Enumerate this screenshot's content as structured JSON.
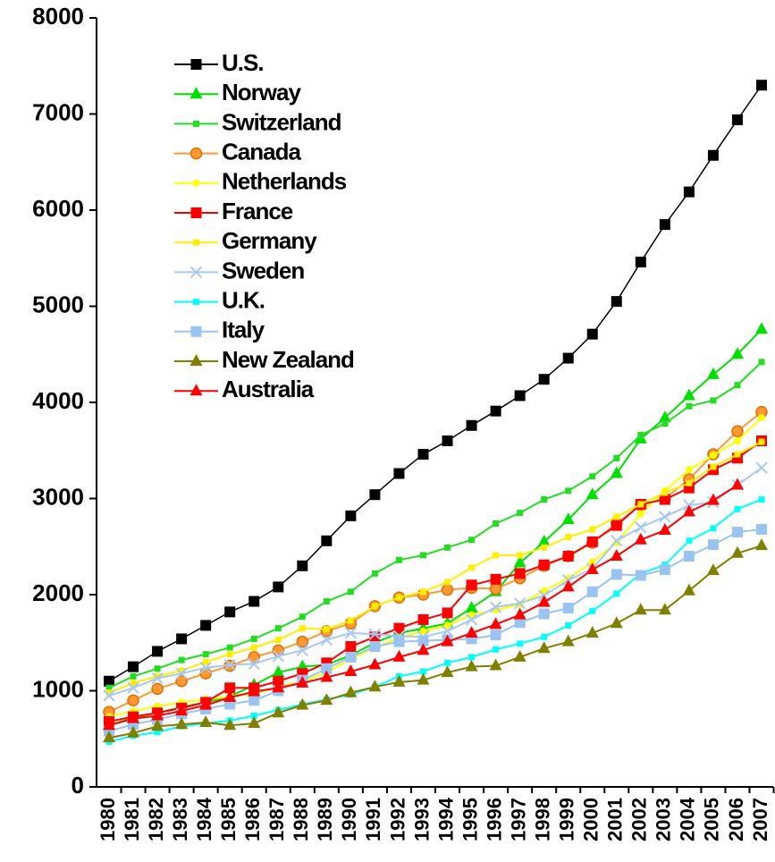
{
  "chart_data": {
    "type": "line",
    "categories": [
      "1980",
      "1981",
      "1982",
      "1983",
      "1984",
      "1985",
      "1986",
      "1987",
      "1988",
      "1989",
      "1990",
      "1991",
      "1992",
      "1993",
      "1994",
      "1995",
      "1996",
      "1997",
      "1998",
      "1999",
      "2000",
      "2001",
      "2002",
      "2003",
      "2004",
      "2005",
      "2006",
      "2007"
    ],
    "ylim": [
      0,
      8000
    ],
    "yticks": [
      0,
      1000,
      2000,
      3000,
      4000,
      5000,
      6000,
      7000,
      8000
    ],
    "grid": false,
    "series": [
      {
        "name": "U.S.",
        "color": "#000000",
        "marker": "square",
        "values": [
          1100,
          1250,
          1410,
          1540,
          1680,
          1820,
          1930,
          2080,
          2300,
          2560,
          2820,
          3040,
          3260,
          3460,
          3600,
          3760,
          3910,
          4070,
          4240,
          4460,
          4710,
          5050,
          5460,
          5850,
          6190,
          6570,
          6940,
          7300
        ]
      },
      {
        "name": "Norway",
        "color": "#00e000",
        "marker": "triangle",
        "values": [
          640,
          720,
          770,
          830,
          880,
          940,
          1060,
          1190,
          1250,
          1270,
          1370,
          1500,
          1600,
          1650,
          1700,
          1860,
          2030,
          2330,
          2550,
          2780,
          3040,
          3260,
          3620,
          3840,
          4070,
          4290,
          4500,
          4760
        ]
      },
      {
        "name": "Switzerland",
        "color": "#22dd22",
        "marker": "small-square",
        "values": [
          1030,
          1150,
          1230,
          1320,
          1380,
          1450,
          1540,
          1650,
          1770,
          1930,
          2030,
          2220,
          2360,
          2410,
          2490,
          2570,
          2740,
          2850,
          2990,
          3080,
          3230,
          3420,
          3660,
          3780,
          3960,
          4020,
          4180,
          4420
        ]
      },
      {
        "name": "Canada",
        "color": "#ff9933",
        "marker": "circle",
        "values": [
          780,
          900,
          1020,
          1100,
          1180,
          1260,
          1350,
          1420,
          1510,
          1620,
          1700,
          1880,
          1970,
          2000,
          2050,
          2070,
          2060,
          2170,
          2300,
          2400,
          2540,
          2740,
          2930,
          3000,
          3200,
          3460,
          3700,
          3900
        ]
      },
      {
        "name": "Netherlands",
        "color": "#ffff00",
        "marker": "small-circle",
        "values": [
          730,
          790,
          840,
          880,
          910,
          940,
          970,
          1040,
          1100,
          1190,
          1330,
          1450,
          1550,
          1620,
          1680,
          1790,
          1840,
          1900,
          2040,
          2170,
          2340,
          2540,
          2840,
          3080,
          3300,
          3450,
          3600,
          3840
        ]
      },
      {
        "name": "France",
        "color": "#ff0000",
        "marker": "square",
        "values": [
          680,
          730,
          770,
          820,
          880,
          1030,
          1030,
          1100,
          1180,
          1290,
          1460,
          1560,
          1650,
          1740,
          1810,
          2100,
          2160,
          2220,
          2310,
          2400,
          2550,
          2720,
          2940,
          2990,
          3110,
          3300,
          3420,
          3600
        ]
      },
      {
        "name": "Germany",
        "color": "#ffee00",
        "marker": "small-square",
        "values": [
          980,
          1080,
          1150,
          1210,
          1300,
          1380,
          1450,
          1530,
          1650,
          1640,
          1730,
          1880,
          1970,
          2030,
          2130,
          2280,
          2410,
          2410,
          2490,
          2600,
          2680,
          2810,
          2940,
          3060,
          3160,
          3330,
          3460,
          3590
        ]
      },
      {
        "name": "Sweden",
        "color": "#a8c8f0",
        "marker": "x",
        "values": [
          950,
          1030,
          1130,
          1180,
          1240,
          1270,
          1280,
          1360,
          1420,
          1530,
          1600,
          1590,
          1570,
          1560,
          1620,
          1740,
          1870,
          1910,
          1990,
          2150,
          2270,
          2560,
          2700,
          2810,
          2930,
          2960,
          3140,
          3320
        ]
      },
      {
        "name": "U.K.",
        "color": "#00ffff",
        "marker": "small-square",
        "values": [
          470,
          530,
          570,
          630,
          660,
          690,
          740,
          800,
          860,
          910,
          960,
          1040,
          1150,
          1200,
          1290,
          1350,
          1430,
          1490,
          1560,
          1680,
          1830,
          2010,
          2220,
          2310,
          2560,
          2690,
          2890,
          2990
        ]
      },
      {
        "name": "Italy",
        "color": "#99c4f2",
        "marker": "square",
        "values": [
          580,
          650,
          700,
          760,
          810,
          860,
          900,
          1000,
          1110,
          1230,
          1350,
          1460,
          1510,
          1520,
          1530,
          1540,
          1580,
          1710,
          1800,
          1860,
          2030,
          2210,
          2200,
          2260,
          2400,
          2520,
          2650,
          2680
        ]
      },
      {
        "name": "New Zealand",
        "color": "#808000",
        "marker": "triangle",
        "values": [
          510,
          560,
          630,
          650,
          670,
          640,
          660,
          770,
          850,
          900,
          980,
          1040,
          1090,
          1110,
          1190,
          1250,
          1260,
          1350,
          1440,
          1510,
          1600,
          1700,
          1840,
          1840,
          2040,
          2250,
          2430,
          2510
        ]
      },
      {
        "name": "Australia",
        "color": "#ff0000",
        "marker": "triangle",
        "values": [
          640,
          710,
          740,
          790,
          850,
          930,
          990,
          1030,
          1080,
          1140,
          1200,
          1270,
          1350,
          1420,
          1510,
          1600,
          1690,
          1790,
          1920,
          2080,
          2260,
          2400,
          2570,
          2670,
          2860,
          2980,
          3140,
          null
        ]
      }
    ]
  }
}
